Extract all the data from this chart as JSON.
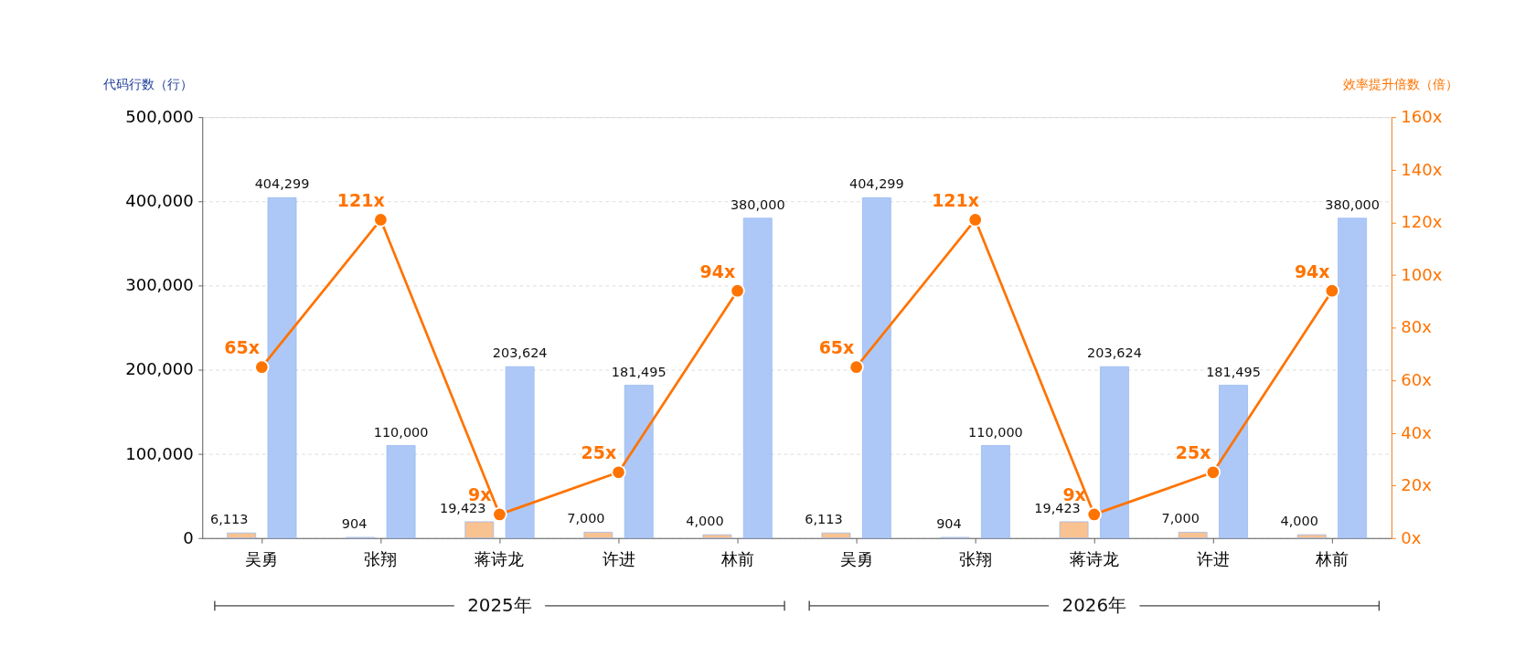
{
  "chart_data": {
    "type": "bar",
    "categories": [
      "吴勇",
      "张翔",
      "蒋诗龙",
      "许进",
      "林前",
      "吴勇",
      "张翔",
      "蒋诗龙",
      "许进",
      "林前"
    ],
    "ylabel": "代码行数（行）",
    "y2label": "效率提升倍数（倍）",
    "ylim": [
      0,
      500000
    ],
    "yticks": [
      {
        "value": 0,
        "label": "0"
      },
      {
        "value": 100000,
        "label": "100,000"
      },
      {
        "value": 200000,
        "label": "200,000"
      },
      {
        "value": 300000,
        "label": "300,000"
      },
      {
        "value": 400000,
        "label": "400,000"
      },
      {
        "value": 500000,
        "label": "500,000"
      }
    ],
    "y2lim": [
      0,
      160
    ],
    "y2ticks": [
      {
        "value": 0,
        "label": "0x"
      },
      {
        "value": 20,
        "label": "20x"
      },
      {
        "value": 40,
        "label": "40x"
      },
      {
        "value": 60,
        "label": "60x"
      },
      {
        "value": 80,
        "label": "80x"
      },
      {
        "value": 100,
        "label": "100x"
      },
      {
        "value": 120,
        "label": "120x"
      },
      {
        "value": 140,
        "label": "140x"
      },
      {
        "value": 160,
        "label": "160x"
      }
    ],
    "grid": "y",
    "marker": "circle",
    "annotations": [
      "2025年",
      "2026年"
    ],
    "series": [
      {
        "color": "#f9bf8c",
        "values": [
          6113,
          904,
          19423,
          7000,
          4000,
          6113,
          904,
          19423,
          7000,
          4000
        ],
        "value_labels": [
          "6,113",
          "904",
          "19,423",
          "7,000",
          "4,000",
          "6,113",
          "904",
          "19,423",
          "7,000",
          "4,000"
        ]
      },
      {
        "color": "#a9c6f6",
        "values": [
          404299,
          110000,
          203624,
          181495,
          380000,
          404299,
          110000,
          203624,
          181495,
          380000
        ],
        "value_labels": [
          "404,299",
          "110,000",
          "203,624",
          "181,495",
          "380,000",
          "404,299",
          "110,000",
          "203,624",
          "181,495",
          "380,000"
        ]
      },
      {
        "type": "line",
        "axis": "y2",
        "color": "#ff7300",
        "values": [
          65,
          121,
          9,
          25,
          94,
          null,
          null,
          null,
          null,
          null
        ],
        "value_labels": [
          "65x",
          "121x",
          "9x",
          "25x",
          "94x",
          null,
          null,
          null,
          null,
          null
        ]
      },
      {
        "type": "line",
        "axis": "y2",
        "color": "#ff7300",
        "values": [
          null,
          null,
          null,
          null,
          null,
          65,
          121,
          9,
          25,
          94
        ],
        "value_labels": [
          null,
          null,
          null,
          null,
          null,
          "65x",
          "121x",
          "9x",
          "25x",
          "94x"
        ]
      }
    ]
  }
}
